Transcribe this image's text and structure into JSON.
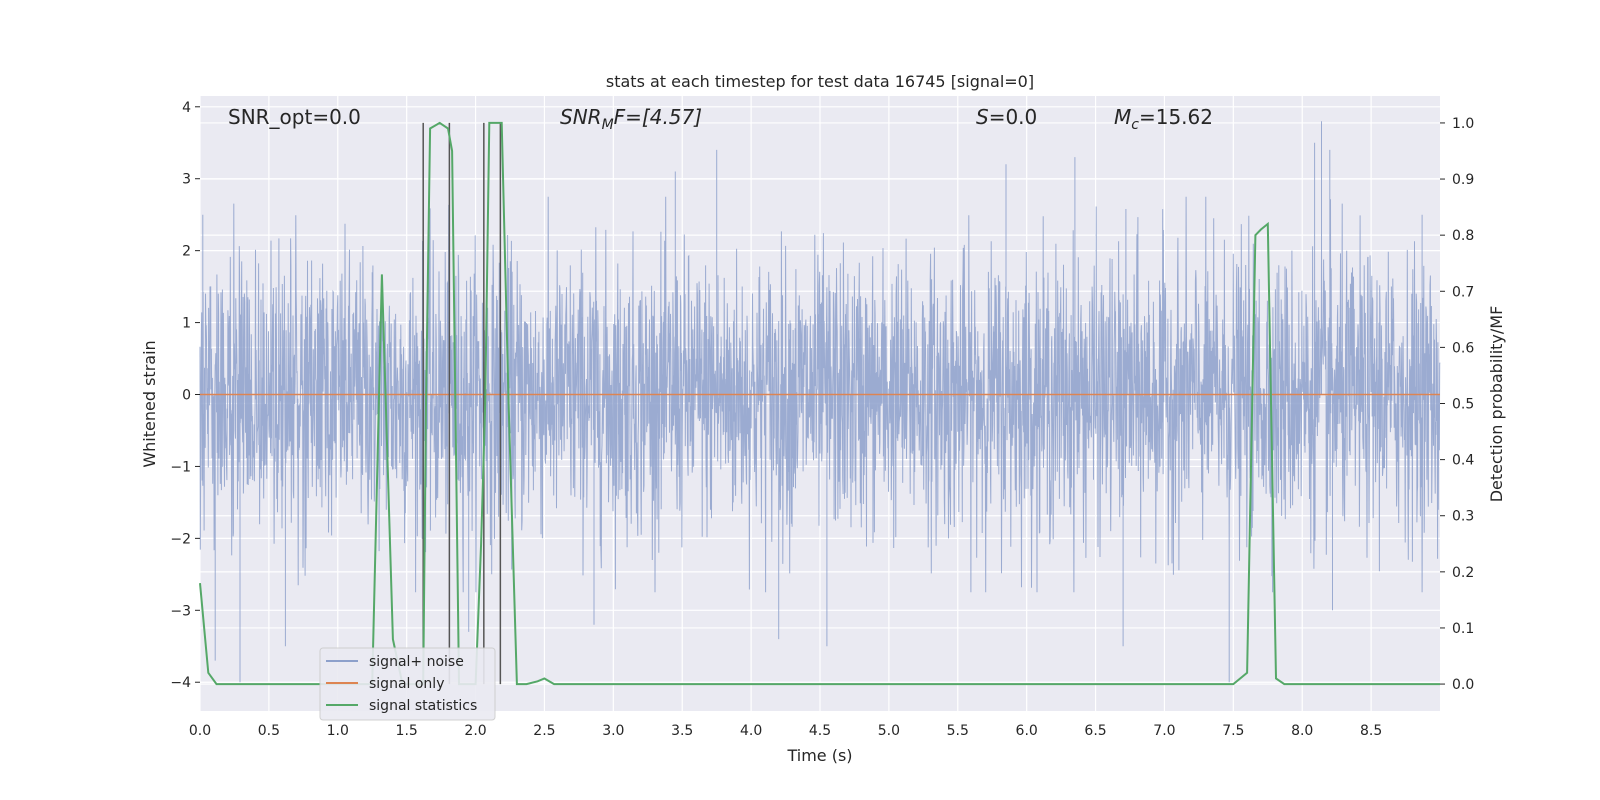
{
  "chart_data": {
    "type": "line",
    "title": "stats at each timestep for test data 16745 [signal=0]",
    "xlabel": "Time (s)",
    "ylabel": "Whitened strain",
    "ylabel_right": "Detection probability/MF",
    "xlim": [
      0.0,
      9.0
    ],
    "ylim": [
      -4.4,
      4.15
    ],
    "ylim_right": [
      -0.048,
      1.048
    ],
    "x_ticks": [
      "0.0",
      "0.5",
      "1.0",
      "1.5",
      "2.0",
      "2.5",
      "3.0",
      "3.5",
      "4.0",
      "4.5",
      "5.0",
      "5.5",
      "6.0",
      "6.5",
      "7.0",
      "7.5",
      "8.0",
      "8.5"
    ],
    "y_ticks": [
      "4",
      "3",
      "2",
      "1",
      "0",
      "−1",
      "−2",
      "−3",
      "−4"
    ],
    "y_ticks_right": [
      "1.0",
      "0.9",
      "0.8",
      "0.7",
      "0.6",
      "0.5",
      "0.4",
      "0.3",
      "0.2",
      "0.1",
      "0.0"
    ],
    "annotations": {
      "snr_opt": "SNR_opt=0.0",
      "snr_mf_main": "SNR",
      "snr_mf_sub": "M",
      "snr_mf_rest": "F=[4.57]",
      "s_main": "S",
      "s_rest": "=0.0",
      "mc_main": "M",
      "mc_sub": "c",
      "mc_rest": "=15.62"
    },
    "legend": {
      "placement": "lower-left",
      "entries": [
        "signal+ noise",
        "signal only",
        "signal statistics"
      ]
    },
    "series": [
      {
        "name": "signal+ noise",
        "description_free": true,
        "noise_sigma": 0.95,
        "spikes": [
          {
            "x": 0.29,
            "y": -4.0
          },
          {
            "x": 0.11,
            "y": -3.7
          },
          {
            "x": 0.62,
            "y": -3.5
          },
          {
            "x": 1.25,
            "y": 1.7
          },
          {
            "x": 1.95,
            "y": -3.3
          },
          {
            "x": 2.86,
            "y": -3.2
          },
          {
            "x": 3.75,
            "y": 3.4
          },
          {
            "x": 4.2,
            "y": -3.4
          },
          {
            "x": 4.55,
            "y": -3.5
          },
          {
            "x": 6.35,
            "y": 3.3
          },
          {
            "x": 6.7,
            "y": -3.5
          },
          {
            "x": 7.47,
            "y": -4.0
          },
          {
            "x": 8.14,
            "y": 3.8
          },
          {
            "x": 8.09,
            "y": 3.5
          },
          {
            "x": 8.2,
            "y": 3.4
          },
          {
            "x": 8.22,
            "y": -3.0
          },
          {
            "x": 5.85,
            "y": 3.2
          },
          {
            "x": 3.45,
            "y": 3.1
          },
          {
            "x": 8.87,
            "y": 2.5
          },
          {
            "x": 0.02,
            "y": 2.5
          }
        ]
      },
      {
        "name": "signal only",
        "x": [
          0.0,
          9.0
        ],
        "y": [
          0.0,
          0.0
        ]
      },
      {
        "name": "signal statistics",
        "axis": "right",
        "x": [
          0.0,
          0.06,
          0.12,
          0.25,
          0.5,
          1.0,
          1.25,
          1.32,
          1.4,
          1.47,
          1.52,
          1.55,
          1.59,
          1.62,
          1.64,
          1.67,
          1.74,
          1.8,
          1.83,
          1.88,
          1.94,
          2.0,
          2.04,
          2.07,
          2.1,
          2.13,
          2.19,
          2.24,
          2.3,
          2.37,
          2.45,
          2.5,
          2.57,
          2.65,
          3.0,
          4.0,
          5.0,
          6.0,
          7.0,
          7.5,
          7.6,
          7.66,
          7.7,
          7.75,
          7.81,
          7.87,
          8.0,
          9.0
        ],
        "y": [
          0.18,
          0.02,
          0.0,
          0.0,
          0.0,
          0.0,
          0.0,
          0.73,
          0.08,
          0.0,
          0.0,
          0.0,
          0.0,
          0.0,
          0.5,
          0.99,
          1.0,
          0.99,
          0.95,
          0.0,
          0.0,
          0.0,
          0.25,
          0.5,
          1.0,
          1.0,
          1.0,
          0.5,
          0.0,
          0.0,
          0.005,
          0.01,
          0.0,
          0.0,
          0.0,
          0.0,
          0.0,
          0.0,
          0.0,
          0.0,
          0.02,
          0.8,
          0.81,
          0.82,
          0.01,
          0.0,
          0.0,
          0.0
        ]
      }
    ],
    "vertical_markers": [
      1.62,
      1.81,
      2.06,
      2.18
    ],
    "colors": {
      "background": "#eaeaf2",
      "grid": "#ffffff",
      "noise": "#8da0cb",
      "signal_only": "#dd8452",
      "statistics": "#55a868",
      "markers": "#555555"
    }
  }
}
